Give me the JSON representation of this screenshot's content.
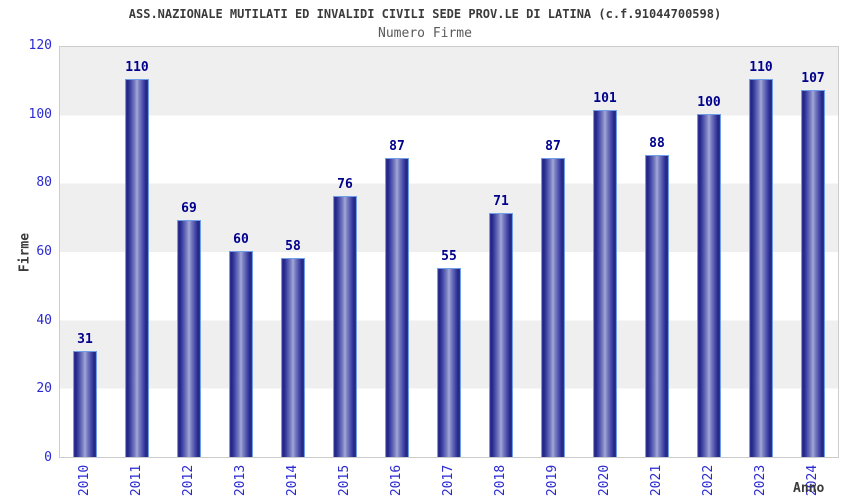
{
  "header": {
    "title": "ASS.NAZIONALE MUTILATI ED INVALIDI CIVILI SEDE PROV.LE DI LATINA (c.f.91044700598)",
    "subtitle": "Numero Firme"
  },
  "chart_data": {
    "type": "bar",
    "title": "Numero Firme",
    "categories": [
      "2010",
      "2011",
      "2012",
      "2013",
      "2014",
      "2015",
      "2016",
      "2017",
      "2018",
      "2019",
      "2020",
      "2021",
      "2022",
      "2023",
      "2024"
    ],
    "values": [
      31,
      110,
      69,
      60,
      58,
      76,
      87,
      55,
      71,
      87,
      101,
      88,
      100,
      110,
      107
    ],
    "xlabel": "Anno",
    "ylabel": "Firme",
    "ylim": [
      0,
      120
    ],
    "yticks": [
      0,
      20,
      40,
      60,
      80,
      100,
      120
    ],
    "grid": "alternating-horizontal-bands",
    "legend_position": "none",
    "value_labels": "above-bars"
  },
  "colors": {
    "tick_label": "#2a2ad0",
    "value_label": "#00008b",
    "bar_edge_dark": "#23277f",
    "bar_center_light": "#a2a7d8",
    "bar_border": "#6f9de8",
    "band_gray": "#efefef",
    "band_white": "#ffffff",
    "plot_border": "#cccccc",
    "title_color": "#3b3b3b",
    "subtitle_color": "#5a5a5a"
  }
}
